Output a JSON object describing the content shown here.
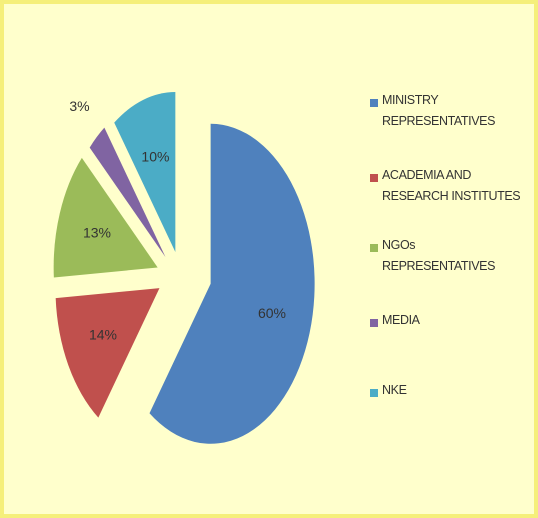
{
  "chart_data": {
    "type": "pie",
    "categories": [
      "MINISTRY REPRESENTATIVES",
      "ACADEMIA AND RESEARCH INSTITUTES",
      "NGOs REPRESENTATIVES",
      "MEDIA",
      "NKE"
    ],
    "values": [
      60,
      14,
      13,
      3,
      10
    ],
    "value_labels": [
      "60%",
      "14%",
      "13%",
      "3%",
      "10%"
    ],
    "colors": [
      "#4f81bd",
      "#c0504d",
      "#9bbb59",
      "#8064a2",
      "#4bacc6"
    ],
    "legend": "right"
  }
}
